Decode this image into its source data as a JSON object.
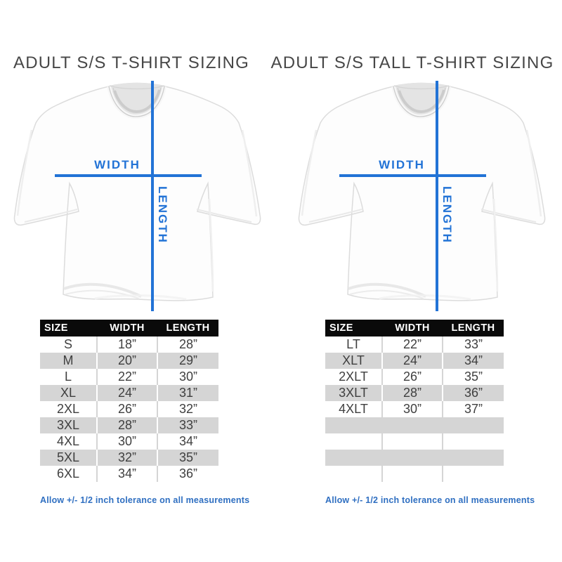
{
  "colors": {
    "accent_blue": "#2273d6",
    "footer_blue": "#2f6fc1",
    "header_bg": "#0a0a0a",
    "header_text": "#ffffff",
    "row_alt_gray": "#d5d5d5",
    "title_color": "#474747",
    "cell_text": "#3f3f3f"
  },
  "left_panel": {
    "title": "ADULT S/S T-SHIRT SIZING",
    "diagram": {
      "width_label": "WIDTH",
      "length_label": "LENGTH"
    },
    "table": {
      "headers": [
        "SIZE",
        "WIDTH",
        "LENGTH"
      ],
      "rows": [
        [
          "S",
          "18”",
          "28”"
        ],
        [
          "M",
          "20”",
          "29”"
        ],
        [
          "L",
          "22”",
          "30”"
        ],
        [
          "XL",
          "24”",
          "31”"
        ],
        [
          "2XL",
          "26”",
          "32”"
        ],
        [
          "3XL",
          "28”",
          "33”"
        ],
        [
          "4XL",
          "30”",
          "34”"
        ],
        [
          "5XL",
          "32”",
          "35”"
        ],
        [
          "6XL",
          "34”",
          "36”"
        ]
      ],
      "empty_rows": 0
    },
    "tolerance_note": "Allow +/- 1/2 inch tolerance on all measurements"
  },
  "right_panel": {
    "title": "ADULT S/S TALL T-SHIRT SIZING",
    "diagram": {
      "width_label": "WIDTH",
      "length_label": "LENGTH"
    },
    "table": {
      "headers": [
        "SIZE",
        "WIDTH",
        "LENGTH"
      ],
      "rows": [
        [
          "LT",
          "22”",
          "33”"
        ],
        [
          "XLT",
          "24”",
          "34”"
        ],
        [
          "2XLT",
          "26”",
          "35”"
        ],
        [
          "3XLT",
          "28”",
          "36”"
        ],
        [
          "4XLT",
          "30”",
          "37”"
        ]
      ],
      "empty_rows": 4
    },
    "tolerance_note": "Allow +/- 1/2 inch tolerance on all measurements"
  },
  "chart_data": [
    {
      "type": "table",
      "title": "ADULT S/S T-SHIRT SIZING",
      "columns": [
        "SIZE",
        "WIDTH",
        "LENGTH"
      ],
      "rows": [
        [
          "S",
          "18\"",
          "28\""
        ],
        [
          "M",
          "20\"",
          "29\""
        ],
        [
          "L",
          "22\"",
          "30\""
        ],
        [
          "XL",
          "24\"",
          "31\""
        ],
        [
          "2XL",
          "26\"",
          "32\""
        ],
        [
          "3XL",
          "28\"",
          "33\""
        ],
        [
          "4XL",
          "30\"",
          "34\""
        ],
        [
          "5XL",
          "32\"",
          "35\""
        ],
        [
          "6XL",
          "34\"",
          "36\""
        ]
      ],
      "note": "Allow +/- 1/2 inch tolerance on all measurements"
    },
    {
      "type": "table",
      "title": "ADULT S/S TALL T-SHIRT SIZING",
      "columns": [
        "SIZE",
        "WIDTH",
        "LENGTH"
      ],
      "rows": [
        [
          "LT",
          "22\"",
          "33\""
        ],
        [
          "XLT",
          "24\"",
          "34\""
        ],
        [
          "2XLT",
          "26\"",
          "35\""
        ],
        [
          "3XLT",
          "28\"",
          "36\""
        ],
        [
          "4XLT",
          "30\"",
          "37\""
        ]
      ],
      "note": "Allow +/- 1/2 inch tolerance on all measurements"
    }
  ]
}
